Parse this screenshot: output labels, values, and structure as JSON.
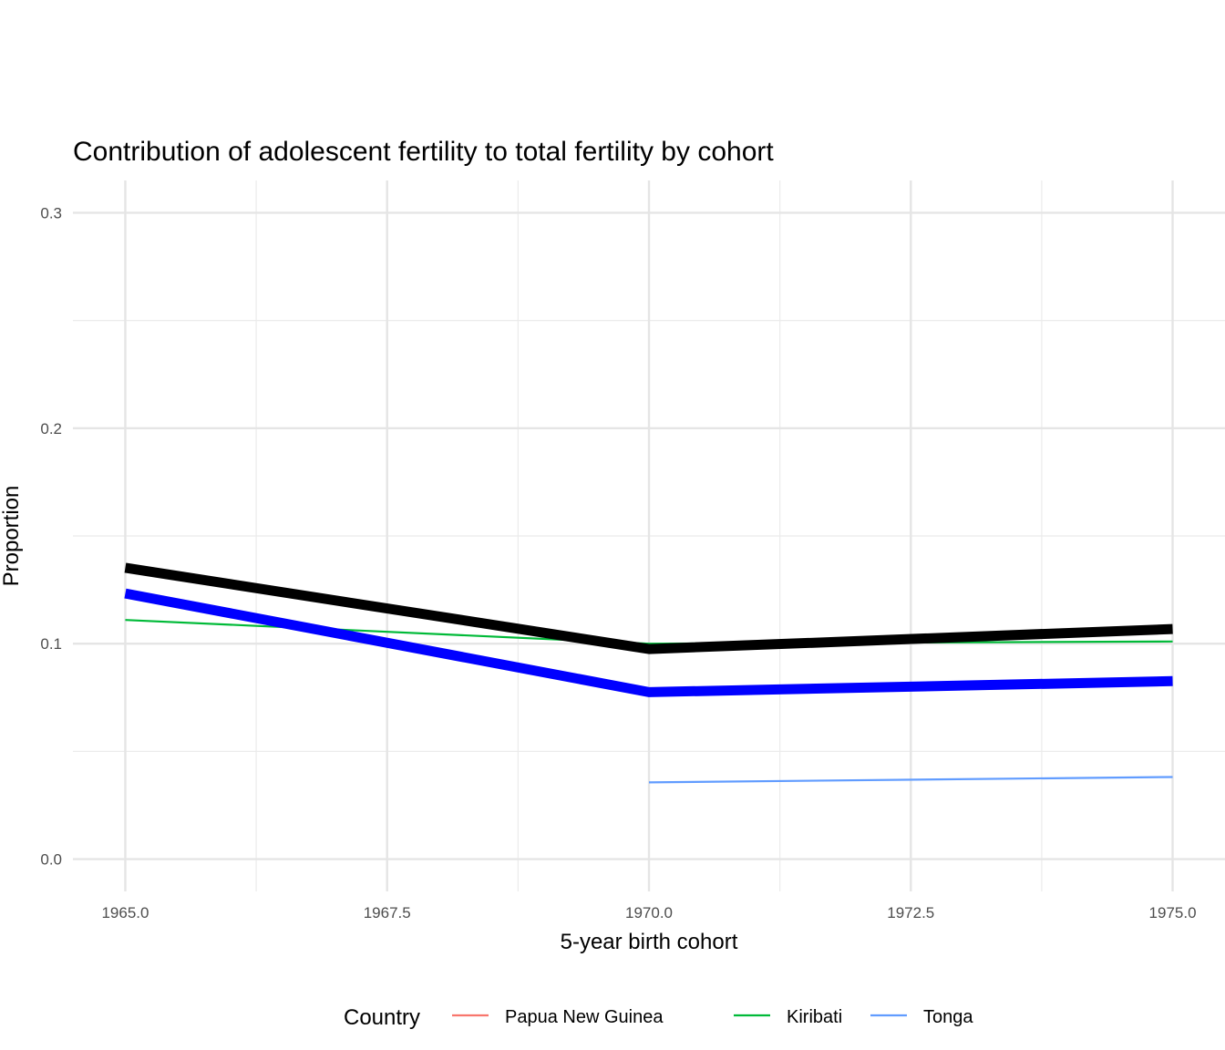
{
  "chart_data": {
    "type": "line",
    "title": "Contribution of adolescent fertility to total fertility by cohort",
    "xlabel": "5-year birth cohort",
    "ylabel": "Proportion",
    "xlim": [
      1964.5,
      1975.5
    ],
    "ylim": [
      -0.015,
      0.315
    ],
    "x_ticks": [
      1965.0,
      1967.5,
      1970.0,
      1972.5,
      1975.0
    ],
    "x_tick_labels": [
      "1965.0",
      "1967.5",
      "1970.0",
      "1972.5",
      "1975.0"
    ],
    "y_ticks": [
      0.0,
      0.1,
      0.2,
      0.3
    ],
    "y_tick_labels": [
      "0.0",
      "0.1",
      "0.2",
      "0.3"
    ],
    "grid": true,
    "legend": {
      "title": "Country",
      "placement": "bottom",
      "entries": [
        {
          "name": "Papua New Guinea",
          "color": "#F8766D"
        },
        {
          "name": "Kiribati",
          "color": "#00BA38"
        },
        {
          "name": "Tonga",
          "color": "#619CFF"
        }
      ]
    },
    "series": [
      {
        "name": "Papua New Guinea",
        "color": "#F8766D",
        "style": "thin",
        "x": [],
        "y": []
      },
      {
        "name": "Kiribati",
        "color": "#00BA38",
        "style": "thin",
        "x": [
          1965,
          1970,
          1975
        ],
        "y": [
          0.111,
          0.1,
          0.101
        ]
      },
      {
        "name": "Tonga",
        "color": "#619CFF",
        "style": "thin",
        "x": [
          1970,
          1975
        ],
        "y": [
          0.0356,
          0.0381
        ]
      },
      {
        "color": "#0000FF",
        "style": "thick",
        "x": [
          1965,
          1970,
          1975
        ],
        "y": [
          0.1233,
          0.0775,
          0.0826
        ]
      },
      {
        "color": "#000000",
        "style": "thick",
        "x": [
          1965,
          1970,
          1975
        ],
        "y": [
          0.1352,
          0.0975,
          0.1068
        ]
      }
    ]
  }
}
